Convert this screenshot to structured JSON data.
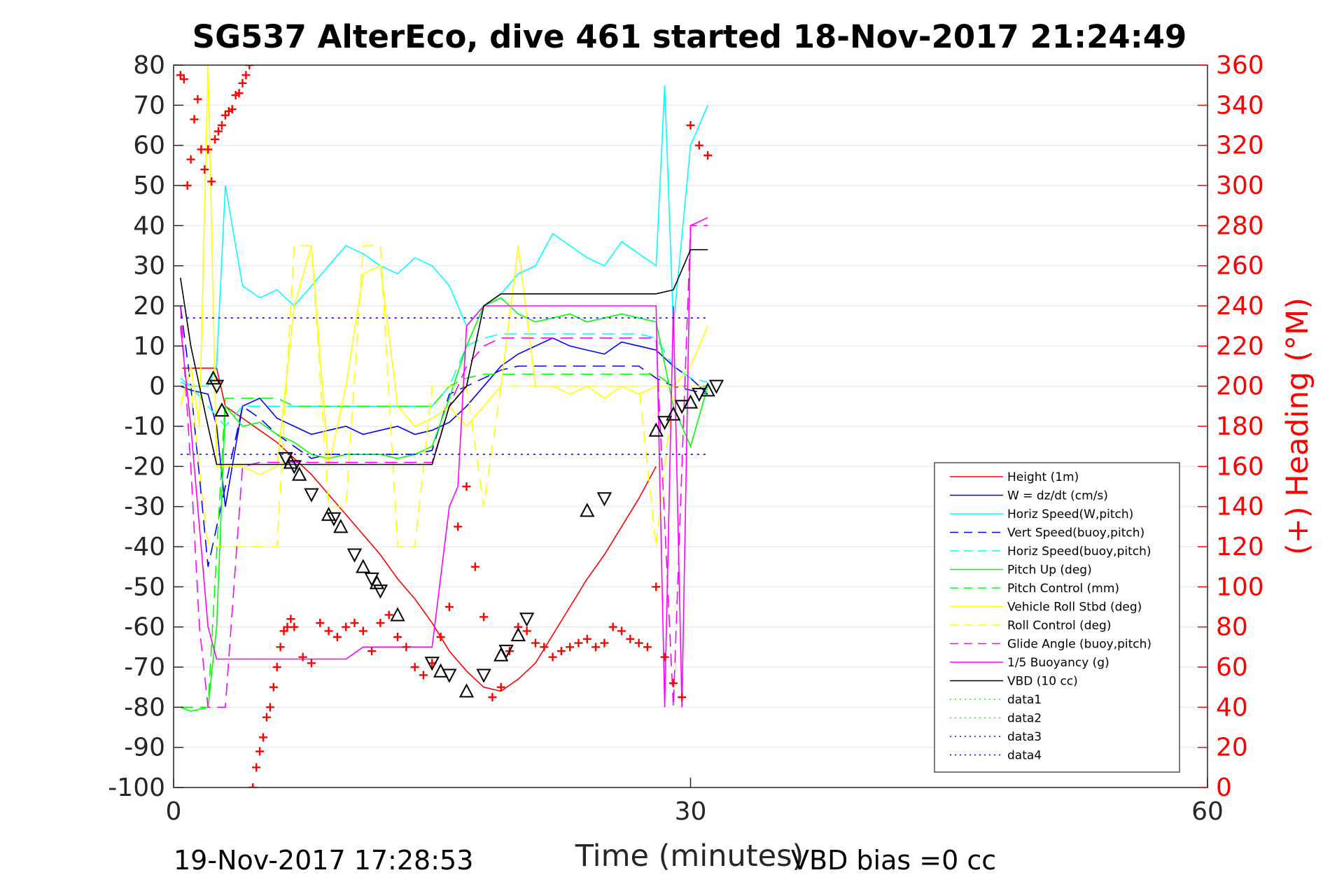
{
  "chart_data": {
    "type": "line",
    "title": "SG537 AlterEco, dive 461 started 18-Nov-2017 21:24:49",
    "xlabel": "Time (minutes)",
    "ylabel_left": "",
    "ylabel_right": "(+) Heading (°M)",
    "xlim": [
      0,
      60
    ],
    "ylim_left": [
      -100,
      80
    ],
    "ylim_right": [
      0,
      360
    ],
    "x_ticks": [
      "0",
      "30",
      "60"
    ],
    "y_ticks_left": [
      "80",
      "70",
      "60",
      "50",
      "40",
      "30",
      "20",
      "10",
      "0",
      "-10",
      "-20",
      "-30",
      "-40",
      "-50",
      "-60",
      "-70",
      "-80",
      "-90",
      "-100"
    ],
    "y_ticks_right": [
      "360",
      "340",
      "320",
      "300",
      "280",
      "260",
      "240",
      "220",
      "200",
      "180",
      "160",
      "140",
      "120",
      "100",
      "80",
      "60",
      "40",
      "20",
      "0"
    ],
    "grid": "horizontal",
    "legend_position": "bottom-right",
    "footer_left": "19-Nov-2017 17:28:53",
    "footer_right": "VBD bias =0 cc",
    "series": [
      {
        "name": "Height (1m)",
        "color": "#ff0000",
        "style": "solid",
        "x": [
          0.5,
          2.5,
          3,
          4,
          5,
          6,
          7,
          8,
          9,
          10,
          11,
          12,
          13,
          14,
          15,
          16,
          17,
          18,
          19,
          20,
          21,
          22,
          23,
          24,
          25,
          26,
          27,
          28
        ],
        "y": [
          4.5,
          4.5,
          -5,
          -8,
          -11,
          -14,
          -18,
          -22,
          -27,
          -32,
          -37,
          -42,
          -48,
          -53,
          -59,
          -66,
          -71,
          -75,
          -76,
          -73,
          -69,
          -62,
          -55,
          -48,
          -42,
          -35,
          -28,
          -20
        ]
      },
      {
        "name": "W = dz/dt (cm/s)",
        "color": "#0000ff",
        "style": "solid",
        "x": [
          0.4,
          1,
          2,
          2.5,
          3,
          4,
          5,
          6,
          7,
          8,
          9,
          10,
          11,
          12,
          13,
          14,
          15,
          16,
          17,
          18,
          19,
          20,
          21,
          22,
          23,
          24,
          25,
          26,
          27,
          28,
          29,
          30,
          31
        ],
        "y": [
          0,
          -1,
          -2,
          -10,
          -30,
          -5,
          -3,
          -8,
          -10,
          -12,
          -11,
          -10,
          -12,
          -11,
          -10,
          -12,
          -11,
          -9,
          -5,
          0,
          5,
          8,
          10,
          12,
          10,
          9,
          8,
          11,
          10,
          9,
          5,
          2,
          -2
        ]
      },
      {
        "name": "Horiz Speed(W,pitch)",
        "color": "#00ffff",
        "style": "solid",
        "x": [
          0.4,
          1,
          2,
          2.5,
          3,
          4,
          5,
          6,
          7,
          8,
          9,
          10,
          11,
          12,
          13,
          14,
          15,
          16,
          17,
          18,
          19,
          20,
          21,
          22,
          23,
          24,
          25,
          26,
          27,
          28,
          28.5,
          29,
          30,
          31
        ],
        "y": [
          1,
          0,
          0,
          5,
          50,
          25,
          22,
          24,
          20,
          25,
          30,
          35,
          33,
          30,
          28,
          32,
          30,
          25,
          15,
          20,
          23,
          28,
          30,
          38,
          35,
          32,
          30,
          36,
          33,
          30,
          75,
          15,
          60,
          70
        ]
      },
      {
        "name": "Vert Speed(buoy,pitch)",
        "color": "#0000ff",
        "style": "dashed",
        "x": [
          0.4,
          1,
          2,
          3,
          4,
          5,
          6,
          7,
          8,
          9,
          10,
          11,
          12,
          13,
          14,
          15,
          16,
          17,
          18,
          19,
          20,
          21,
          22,
          23,
          24,
          25,
          26,
          27,
          28,
          29,
          30,
          31
        ],
        "y": [
          20,
          0,
          -45,
          -25,
          -5,
          -8,
          -12,
          -15,
          -18,
          -17,
          -17,
          -17,
          -17,
          -17,
          -17,
          -16,
          -2,
          0,
          2,
          4,
          5,
          5,
          5,
          5,
          5,
          5,
          5,
          5,
          2,
          0,
          -1,
          -2
        ]
      },
      {
        "name": "Horiz Speed(buoy,pitch)",
        "color": "#00ffff",
        "style": "dashed",
        "x": [
          0.4,
          1,
          2,
          3,
          4,
          5,
          6,
          7,
          8,
          9,
          10,
          11,
          12,
          13,
          14,
          15,
          16,
          17,
          18,
          19,
          20,
          21,
          22,
          23,
          24,
          25,
          26,
          27,
          28,
          29,
          30,
          31
        ],
        "y": [
          2,
          0,
          -5,
          -10,
          -5,
          -5,
          -5,
          -5,
          -5,
          -5,
          -5,
          -5,
          -5,
          -5,
          -5,
          -5,
          0,
          10,
          12,
          13,
          13,
          13,
          13,
          13,
          13,
          13,
          13,
          13,
          12,
          5,
          2,
          1
        ]
      },
      {
        "name": "Pitch Up (deg)",
        "color": "#00ff00",
        "style": "solid",
        "x": [
          0.4,
          1,
          2,
          2.5,
          3,
          4,
          5,
          6,
          7,
          8,
          9,
          10,
          11,
          12,
          13,
          14,
          15,
          16,
          17,
          18,
          19,
          20,
          21,
          22,
          23,
          24,
          25,
          26,
          27,
          28,
          29,
          30,
          31
        ],
        "y": [
          -80,
          -81,
          -80,
          -60,
          -5,
          -10,
          -9,
          -12,
          -14,
          -17,
          -18,
          -17,
          -17,
          -17,
          -18,
          -17,
          -15,
          -3,
          10,
          20,
          22,
          18,
          16,
          17,
          18,
          16,
          17,
          18,
          17,
          16,
          -5,
          -15,
          0
        ]
      },
      {
        "name": "Pitch Control (mm)",
        "color": "#00ff00",
        "style": "dashed",
        "x": [
          0.4,
          1,
          2,
          3,
          4,
          5,
          6,
          7,
          8,
          9,
          10,
          11,
          12,
          13,
          14,
          15,
          16,
          17,
          18,
          19,
          20,
          21,
          22,
          23,
          24,
          25,
          26,
          27,
          28,
          29,
          30,
          31
        ],
        "y": [
          -80,
          -80,
          -80,
          -3,
          -3,
          -3,
          -3,
          -5,
          -5,
          -5,
          -5,
          -5,
          -5,
          -5,
          -5,
          -5,
          0,
          2,
          3,
          3,
          3,
          3,
          3,
          3,
          3,
          3,
          3,
          3,
          3,
          0,
          0,
          0
        ]
      },
      {
        "name": "Vehicle Roll Stbd (deg)",
        "color": "#ffff00",
        "style": "solid",
        "x": [
          0.4,
          1,
          1.5,
          2,
          2.5,
          3,
          4,
          5,
          6,
          7,
          8,
          9,
          10,
          11,
          12,
          13,
          14,
          15,
          16,
          17,
          18,
          19,
          20,
          21,
          22,
          23,
          24,
          25,
          26,
          27,
          28,
          29,
          30,
          31
        ],
        "y": [
          -5,
          5,
          -10,
          80,
          -20,
          -20,
          -20,
          -22,
          -20,
          20,
          35,
          -20,
          0,
          28,
          30,
          -5,
          -10,
          -8,
          -5,
          -10,
          -5,
          0,
          35,
          0,
          0,
          -2,
          0,
          -3,
          0,
          -2,
          0,
          0,
          5,
          15
        ]
      },
      {
        "name": "Roll Control (deg)",
        "color": "#ffff00",
        "style": "dashed",
        "x": [
          0.4,
          1,
          2,
          3,
          4,
          5,
          6,
          7,
          8,
          9,
          10,
          11,
          12,
          13,
          14,
          15,
          16,
          17,
          18,
          19,
          20,
          21,
          22,
          23,
          24,
          25,
          26,
          27,
          28,
          29,
          30,
          31
        ],
        "y": [
          0,
          0,
          -40,
          -40,
          -40,
          -40,
          -40,
          35,
          35,
          -30,
          -30,
          35,
          35,
          -40,
          -40,
          0,
          0,
          0,
          -30,
          0,
          0,
          0,
          0,
          0,
          0,
          0,
          0,
          0,
          -40,
          0,
          0,
          0
        ]
      },
      {
        "name": "Glide Angle (buoy,pitch)",
        "color": "#ff00ff",
        "style": "dashed",
        "x": [
          0.4,
          1,
          1.5,
          2,
          3,
          4,
          5,
          6,
          7,
          8,
          9,
          10,
          11,
          12,
          13,
          14,
          15,
          16,
          17,
          18,
          19,
          20,
          21,
          22,
          23,
          24,
          25,
          26,
          27,
          28,
          29,
          30,
          31
        ],
        "y": [
          20,
          -20,
          -60,
          -80,
          -80,
          -20,
          -19,
          -19,
          -19,
          -19,
          -19,
          -19,
          -19,
          -19,
          -19,
          -19,
          -19,
          -5,
          5,
          10,
          12,
          12,
          12,
          12,
          12,
          12,
          12,
          12,
          12,
          12,
          -80,
          40,
          40
        ]
      },
      {
        "name": "1/5 Buoyancy (g)",
        "color": "#ff00ff",
        "style": "solid",
        "x": [
          0.4,
          1,
          2,
          2.5,
          5,
          10,
          11,
          12,
          13,
          14,
          15,
          16,
          16.5,
          17,
          18,
          19,
          20,
          21,
          22,
          23,
          24,
          25,
          26,
          27,
          28,
          28.5,
          29,
          29.5,
          30,
          31
        ],
        "y": [
          15,
          -10,
          -60,
          -68,
          -68,
          -68,
          -65,
          -65,
          -65,
          -65,
          -65,
          -30,
          -25,
          15,
          20,
          20,
          20,
          20,
          20,
          20,
          20,
          20,
          20,
          20,
          20,
          -80,
          20,
          -80,
          40,
          42
        ]
      },
      {
        "name": "VBD (10 cc)",
        "color": "#000000",
        "style": "solid",
        "x": [
          0.4,
          1,
          2,
          2.5,
          3,
          5,
          10,
          15,
          16,
          17,
          18,
          19,
          20,
          25,
          28,
          29,
          30,
          31
        ],
        "y": [
          27,
          10,
          -10,
          -19.5,
          -19.5,
          -19.5,
          -19.5,
          -19.5,
          -5,
          0,
          20,
          23,
          23,
          23,
          23,
          24,
          34,
          34
        ]
      },
      {
        "name": "data1",
        "color": "#00ff00",
        "style": "dotted",
        "x": [],
        "y": []
      },
      {
        "name": "data2",
        "color": "#00ff00",
        "style": "dotted",
        "x": [],
        "y": []
      },
      {
        "name": "data3",
        "color": "#0000ff",
        "style": "dotted",
        "x": [
          0.4,
          31
        ],
        "y": [
          17,
          17
        ]
      },
      {
        "name": "data4",
        "color": "#0000ff",
        "style": "dotted",
        "x": [
          0.4,
          31
        ],
        "y": [
          -17,
          -17
        ]
      }
    ],
    "heading_marks": {
      "color": "#ff0000",
      "marker": "plus",
      "x": [
        0.4,
        0.6,
        0.8,
        1,
        1.2,
        1.4,
        1.6,
        1.8,
        2,
        2.2,
        2.4,
        2.6,
        2.8,
        3,
        3.2,
        3.4,
        3.6,
        3.8,
        4,
        4.2,
        4.4,
        4.6,
        4.8,
        5,
        5.2,
        5.4,
        5.6,
        5.8,
        6,
        6.2,
        6.4,
        6.6,
        6.8,
        7,
        7.5,
        8,
        8.5,
        9,
        9.5,
        10,
        10.5,
        11,
        11.5,
        12,
        12.5,
        13,
        13.5,
        14,
        14.5,
        15,
        15.5,
        16,
        16.5,
        17,
        17.5,
        18,
        18.5,
        19,
        19.5,
        20,
        20.5,
        21,
        21.5,
        22,
        22.5,
        23,
        23.5,
        24,
        24.5,
        25,
        25.5,
        26,
        26.5,
        27,
        27.5,
        28,
        28.5,
        29,
        29.5,
        30,
        30.5,
        31
      ],
      "y": [
        355,
        353,
        300,
        313,
        333,
        343,
        318,
        308,
        318,
        302,
        323,
        327,
        330,
        335,
        337,
        338,
        345,
        346,
        351,
        355,
        360,
        0,
        10,
        18,
        25,
        35,
        40,
        50,
        60,
        70,
        78,
        80,
        84,
        80,
        65,
        62,
        82,
        78,
        75,
        80,
        82,
        78,
        68,
        82,
        86,
        75,
        70,
        60,
        56,
        62,
        75,
        90,
        130,
        150,
        110,
        85,
        45,
        50,
        68,
        80,
        78,
        72,
        70,
        65,
        68,
        70,
        72,
        74,
        70,
        72,
        80,
        78,
        74,
        72,
        70,
        100,
        65,
        52,
        45,
        330,
        320,
        315
      ]
    },
    "height_markers": {
      "color": "#000000",
      "x": [
        2.3,
        2.5,
        2.8,
        6.5,
        6.8,
        7,
        7.3,
        8,
        9,
        9.3,
        9.7,
        10.5,
        11,
        11.5,
        11.8,
        12,
        13,
        15,
        15.5,
        16,
        17,
        18,
        19,
        19.3,
        20,
        20.5,
        24,
        25,
        28,
        28.5,
        29,
        29.5,
        30,
        30.5,
        31,
        31.5
      ],
      "y": [
        2,
        0,
        -6,
        -18,
        -19,
        -20,
        -22,
        -27,
        -32,
        -33,
        -35,
        -42,
        -45,
        -48,
        -49,
        -51,
        -57,
        -69,
        -71,
        -72,
        -76,
        -72,
        -67,
        -66,
        -62,
        -58,
        -31,
        -28,
        -11,
        -9,
        -7,
        -5,
        -4,
        -2,
        -1,
        0
      ]
    }
  }
}
